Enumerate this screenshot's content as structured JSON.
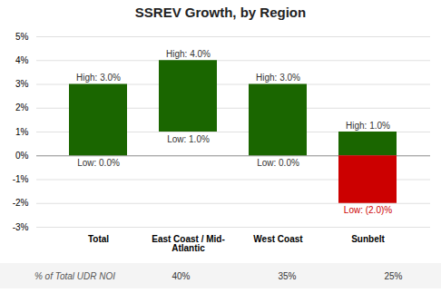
{
  "chart_data": {
    "type": "bar",
    "title": "SSREV Growth, by Region",
    "categories": [
      "Total",
      "East Coast / Mid-Atlantic",
      "West Coast",
      "Sunbelt"
    ],
    "series": [
      {
        "color": "#1a6600",
        "low": [
          0.0,
          1.0,
          0.0,
          0.0
        ],
        "high": [
          3.0,
          4.0,
          3.0,
          1.0
        ]
      },
      {
        "color": "#cc0000",
        "low": [
          null,
          null,
          null,
          -2.0
        ],
        "high": [
          null,
          null,
          null,
          0.0
        ]
      }
    ],
    "annotations": [
      {
        "category": "Total",
        "value": 3.0,
        "label": "High: 3.0%",
        "color": "#333333",
        "position": "above"
      },
      {
        "category": "East Coast / Mid-Atlantic",
        "value": 4.0,
        "label": "High: 4.0%",
        "color": "#333333",
        "position": "above"
      },
      {
        "category": "West Coast",
        "value": 3.0,
        "label": "High: 3.0%",
        "color": "#333333",
        "position": "above"
      },
      {
        "category": "Sunbelt",
        "value": 1.0,
        "label": "High: 1.0%",
        "color": "#333333",
        "position": "above"
      },
      {
        "category": "Total",
        "value": 0.0,
        "label": "Low: 0.0%",
        "color": "#333333",
        "position": "below"
      },
      {
        "category": "East Coast / Mid-Atlantic",
        "value": 1.0,
        "label": "Low: 1.0%",
        "color": "#333333",
        "position": "below"
      },
      {
        "category": "West Coast",
        "value": 0.0,
        "label": "Low: 0.0%",
        "color": "#333333",
        "position": "below"
      },
      {
        "category": "Sunbelt",
        "value": -2.0,
        "label": "Low: (2.0)%",
        "color": "#cc0000",
        "position": "below"
      }
    ],
    "table": {
      "label": "% of Total UDR NOI",
      "values": [
        null,
        40,
        35,
        25
      ],
      "value_labels": [
        null,
        "40%",
        "35%",
        "25%"
      ]
    },
    "ylim": [
      -3.0,
      5.0
    ],
    "yticks": [
      {
        "value": -3,
        "label": "-3%"
      },
      {
        "value": -2,
        "label": "-2%"
      },
      {
        "value": -1,
        "label": "-1%"
      },
      {
        "value": 0,
        "label": "0%"
      },
      {
        "value": 1,
        "label": "1%"
      },
      {
        "value": 2,
        "label": "2%"
      },
      {
        "value": 3,
        "label": "3%"
      },
      {
        "value": 4,
        "label": "4%"
      },
      {
        "value": 5,
        "label": "5%"
      }
    ],
    "grid": true
  }
}
